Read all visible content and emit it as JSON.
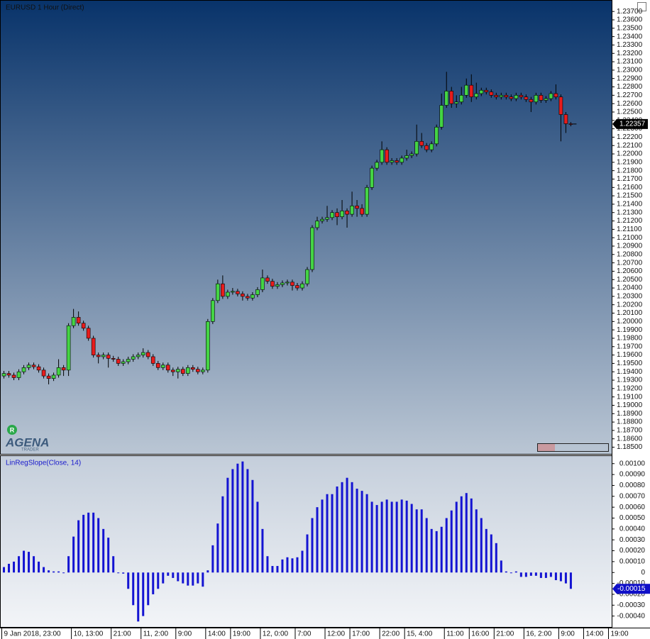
{
  "chart_data": [
    {
      "type": "candlestick",
      "title": "EURUSD 1 Hour (Direct)",
      "up_color": "#44d444",
      "down_color": "#e81c1c",
      "open": [
        1.1935,
        1.1938,
        1.1936,
        1.1933,
        1.194,
        1.1945,
        1.1948,
        1.1946,
        1.1942,
        1.1935,
        1.1932,
        1.1936,
        1.1945,
        1.1942,
        1.1995,
        1.2005,
        1.1998,
        1.1992,
        1.198,
        1.196,
        1.1958,
        1.196,
        1.1956,
        1.1955,
        1.195,
        1.1952,
        1.1955,
        1.1958,
        1.196,
        1.1963,
        1.1958,
        1.195,
        1.1945,
        1.1948,
        1.1942,
        1.194,
        1.1943,
        1.1938,
        1.1945,
        1.1943,
        1.194,
        1.1942,
        1.2,
        1.2025,
        1.2045,
        1.203,
        1.2035,
        1.2036,
        1.2033,
        1.203,
        1.2028,
        1.2032,
        1.2038,
        1.2052,
        1.2048,
        1.2042,
        1.2044,
        1.2046,
        1.2047,
        1.2043,
        1.204,
        1.2045,
        1.2062,
        1.2112,
        1.212,
        1.2122,
        1.2124,
        1.213,
        1.2125,
        1.2132,
        1.2128,
        1.2138,
        1.2135,
        1.2128,
        1.216,
        1.2183,
        1.219,
        1.2205,
        1.219,
        1.2192,
        1.219,
        1.2195,
        1.2198,
        1.22,
        1.2215,
        1.221,
        1.2205,
        1.2212,
        1.2232,
        1.2258,
        1.2275,
        1.226,
        1.2262,
        1.227,
        1.2282,
        1.2268,
        1.2272,
        1.2276,
        1.2274,
        1.227,
        1.2268,
        1.227,
        1.2268,
        1.2266,
        1.227,
        1.2268,
        1.2265,
        1.2262,
        1.227,
        1.2264,
        1.2266,
        1.2272,
        1.2268,
        1.2247,
        1.2236,
        null,
        null,
        null,
        null,
        null,
        null,
        null,
        null
      ],
      "high": [
        1.1941,
        1.1941,
        1.1939,
        1.1943,
        1.1948,
        1.1951,
        1.1951,
        1.1949,
        1.1945,
        1.1938,
        1.1939,
        1.1955,
        1.1948,
        1.1998,
        1.2015,
        1.2012,
        1.2001,
        1.1995,
        1.1983,
        1.1963,
        1.1963,
        1.1963,
        1.1959,
        1.1958,
        1.1955,
        1.1958,
        1.1961,
        1.1963,
        1.1968,
        1.1966,
        1.1961,
        1.1953,
        1.1951,
        1.1951,
        1.1945,
        1.1946,
        1.1946,
        1.1948,
        1.1948,
        1.1946,
        1.1945,
        1.2003,
        1.2028,
        1.205,
        1.2055,
        1.2038,
        1.204,
        1.2039,
        1.2036,
        1.2033,
        1.2035,
        1.2041,
        1.2062,
        1.2055,
        1.2051,
        1.2047,
        1.2049,
        1.205,
        1.205,
        1.2046,
        1.2048,
        1.2065,
        1.2115,
        1.2125,
        1.2125,
        1.2138,
        1.2133,
        1.2135,
        1.2145,
        1.2135,
        1.2155,
        1.2145,
        1.214,
        1.2163,
        1.2186,
        1.2193,
        1.2215,
        1.2208,
        1.2195,
        1.2195,
        1.2198,
        1.2205,
        1.2203,
        1.2235,
        1.2225,
        1.2213,
        1.2215,
        1.2235,
        1.2272,
        1.2298,
        1.228,
        1.227,
        1.228,
        1.229,
        1.2295,
        1.2285,
        1.2279,
        1.2279,
        1.2277,
        1.2273,
        1.2273,
        1.2273,
        1.2271,
        1.2273,
        1.2273,
        1.2271,
        1.2268,
        1.2273,
        1.2273,
        1.2269,
        1.2275,
        1.2283,
        1.2271,
        1.225,
        1.2238,
        null,
        null,
        null,
        null,
        null,
        null,
        null,
        null
      ],
      "low": [
        1.1932,
        1.1933,
        1.193,
        1.193,
        1.1937,
        1.1942,
        1.1943,
        1.1939,
        1.1932,
        1.1925,
        1.1929,
        1.1933,
        1.1935,
        1.1935,
        1.1992,
        1.1995,
        1.1989,
        1.1977,
        1.1957,
        1.195,
        1.1955,
        1.1945,
        1.1952,
        1.1947,
        1.1947,
        1.1949,
        1.1952,
        1.1955,
        1.1957,
        1.1955,
        1.1947,
        1.1942,
        1.1942,
        1.1939,
        1.1935,
        1.1932,
        1.1935,
        1.1935,
        1.194,
        1.1937,
        1.1937,
        1.1939,
        1.1997,
        1.2022,
        1.2027,
        1.2027,
        1.2032,
        1.203,
        1.2025,
        1.2025,
        1.2025,
        1.2029,
        1.2035,
        1.2045,
        1.2039,
        1.2039,
        1.2041,
        1.2043,
        1.2037,
        1.2037,
        1.2037,
        1.2042,
        1.2059,
        1.2109,
        1.2117,
        1.2119,
        1.2121,
        1.2115,
        1.2122,
        1.2112,
        1.2125,
        1.2125,
        1.2125,
        1.2125,
        1.2157,
        1.218,
        1.2187,
        1.2187,
        1.2187,
        1.2187,
        1.2187,
        1.2192,
        1.2195,
        1.2197,
        1.2207,
        1.2202,
        1.2202,
        1.2209,
        1.2229,
        1.2255,
        1.2255,
        1.2255,
        1.2259,
        1.2267,
        1.2262,
        1.2265,
        1.2269,
        1.2271,
        1.2267,
        1.2265,
        1.2265,
        1.2265,
        1.2263,
        1.2263,
        1.2265,
        1.2262,
        1.225,
        1.2259,
        1.2261,
        1.2261,
        1.2263,
        1.2265,
        1.2215,
        1.2225,
        1.2233,
        null,
        null,
        null,
        null,
        null,
        null,
        null,
        null
      ],
      "close": [
        1.1938,
        1.1936,
        1.1933,
        1.194,
        1.1945,
        1.1948,
        1.1946,
        1.1942,
        1.1935,
        1.1932,
        1.1936,
        1.1945,
        1.1942,
        1.1995,
        1.2005,
        1.1998,
        1.1992,
        1.198,
        1.196,
        1.1958,
        1.196,
        1.1956,
        1.1955,
        1.195,
        1.1952,
        1.1955,
        1.1958,
        1.196,
        1.1963,
        1.1958,
        1.195,
        1.1945,
        1.1948,
        1.1942,
        1.194,
        1.1943,
        1.1938,
        1.1945,
        1.1943,
        1.194,
        1.1942,
        1.2,
        1.2025,
        1.2045,
        1.203,
        1.2035,
        1.2036,
        1.2033,
        1.203,
        1.2028,
        1.2032,
        1.2038,
        1.2052,
        1.2048,
        1.2042,
        1.2044,
        1.2046,
        1.2047,
        1.2043,
        1.204,
        1.2045,
        1.2062,
        1.2112,
        1.212,
        1.2122,
        1.2124,
        1.213,
        1.2125,
        1.2132,
        1.2128,
        1.2138,
        1.2135,
        1.2128,
        1.216,
        1.2183,
        1.219,
        1.2205,
        1.219,
        1.2192,
        1.219,
        1.2195,
        1.2198,
        1.22,
        1.2215,
        1.221,
        1.2205,
        1.2212,
        1.2232,
        1.2258,
        1.2275,
        1.226,
        1.2262,
        1.227,
        1.2282,
        1.2268,
        1.2272,
        1.2276,
        1.2274,
        1.227,
        1.2268,
        1.227,
        1.2268,
        1.2266,
        1.227,
        1.2268,
        1.2265,
        1.2262,
        1.227,
        1.2264,
        1.2266,
        1.2272,
        1.2268,
        1.2247,
        1.2236,
        1.22357,
        null,
        null,
        null,
        null,
        null,
        null,
        null,
        null
      ],
      "ylim": [
        1.1842,
        1.2382
      ],
      "yticks": [
        {
          "value": 1.185,
          "label": "1.18500"
        },
        {
          "value": 1.186,
          "label": "1.18600"
        },
        {
          "value": 1.187,
          "label": "1.18700"
        },
        {
          "value": 1.188,
          "label": "1.18800"
        },
        {
          "value": 1.189,
          "label": "1.18900"
        },
        {
          "value": 1.19,
          "label": "1.19000"
        },
        {
          "value": 1.191,
          "label": "1.19100"
        },
        {
          "value": 1.192,
          "label": "1.19200"
        },
        {
          "value": 1.193,
          "label": "1.19300"
        },
        {
          "value": 1.194,
          "label": "1.19400"
        },
        {
          "value": 1.195,
          "label": "1.19500"
        },
        {
          "value": 1.196,
          "label": "1.19600"
        },
        {
          "value": 1.197,
          "label": "1.19700"
        },
        {
          "value": 1.198,
          "label": "1.19800"
        },
        {
          "value": 1.199,
          "label": "1.19900"
        },
        {
          "value": 1.2,
          "label": "1.20000"
        },
        {
          "value": 1.201,
          "label": "1.20100"
        },
        {
          "value": 1.202,
          "label": "1.20200"
        },
        {
          "value": 1.203,
          "label": "1.20300"
        },
        {
          "value": 1.204,
          "label": "1.20400"
        },
        {
          "value": 1.205,
          "label": "1.20500"
        },
        {
          "value": 1.206,
          "label": "1.20600"
        },
        {
          "value": 1.207,
          "label": "1.20700"
        },
        {
          "value": 1.208,
          "label": "1.20800"
        },
        {
          "value": 1.209,
          "label": "1.20900"
        },
        {
          "value": 1.21,
          "label": "1.21000"
        },
        {
          "value": 1.211,
          "label": "1.21100"
        },
        {
          "value": 1.212,
          "label": "1.21200"
        },
        {
          "value": 1.213,
          "label": "1.21300"
        },
        {
          "value": 1.214,
          "label": "1.21400"
        },
        {
          "value": 1.215,
          "label": "1.21500"
        },
        {
          "value": 1.216,
          "label": "1.21600"
        },
        {
          "value": 1.217,
          "label": "1.21700"
        },
        {
          "value": 1.218,
          "label": "1.21800"
        },
        {
          "value": 1.219,
          "label": "1.21900"
        },
        {
          "value": 1.22,
          "label": "1.22000"
        },
        {
          "value": 1.221,
          "label": "1.22100"
        },
        {
          "value": 1.222,
          "label": "1.22200"
        },
        {
          "value": 1.223,
          "label": "1.22300"
        },
        {
          "value": 1.224,
          "label": "1.22400"
        },
        {
          "value": 1.225,
          "label": "1.22500"
        },
        {
          "value": 1.226,
          "label": "1.22600"
        },
        {
          "value": 1.227,
          "label": "1.22700"
        },
        {
          "value": 1.228,
          "label": "1.22800"
        },
        {
          "value": 1.229,
          "label": "1.22900"
        },
        {
          "value": 1.23,
          "label": "1.23000"
        },
        {
          "value": 1.231,
          "label": "1.23100"
        },
        {
          "value": 1.232,
          "label": "1.23200"
        },
        {
          "value": 1.233,
          "label": "1.23300"
        },
        {
          "value": 1.234,
          "label": "1.23400"
        },
        {
          "value": 1.235,
          "label": "1.23500"
        },
        {
          "value": 1.236,
          "label": "1.23600"
        },
        {
          "value": 1.237,
          "label": "1.23700"
        }
      ]
    },
    {
      "type": "bar",
      "title": "LinRegSlope(Close, 14)",
      "color": "#1414d2",
      "categories": [
        "9 Jan 2018, 23:00",
        null,
        null,
        null,
        null,
        null,
        null,
        null,
        null,
        null,
        null,
        null,
        null,
        null,
        "10, 13:00",
        null,
        null,
        null,
        null,
        null,
        null,
        null,
        "21:00",
        null,
        null,
        null,
        null,
        null,
        "11, 2:00",
        null,
        null,
        null,
        null,
        null,
        null,
        "9:00",
        null,
        null,
        null,
        null,
        null,
        "14:00",
        null,
        null,
        null,
        null,
        "19:00",
        null,
        null,
        null,
        null,
        null,
        "12, 0:00",
        null,
        null,
        null,
        null,
        null,
        null,
        "7:00",
        null,
        null,
        null,
        null,
        null,
        "12:00",
        null,
        null,
        null,
        null,
        "17:00",
        null,
        null,
        null,
        null,
        null,
        "22:00",
        null,
        null,
        null,
        null,
        "15, 4:00",
        null,
        null,
        null,
        null,
        null,
        null,
        null,
        "11:00",
        null,
        null,
        null,
        null,
        "16:00",
        null,
        null,
        null,
        null,
        "21:00",
        null,
        null,
        null,
        null,
        null,
        "16, 2:00",
        null,
        null,
        null,
        null,
        null,
        null,
        "9:00",
        null,
        null,
        null,
        null,
        "14:00",
        null,
        null,
        null,
        null,
        "19:00"
      ],
      "values": [
        5e-05,
        8e-05,
        0.0001,
        0.00015,
        0.0002,
        0.00019,
        0.00015,
        0.0001,
        5e-05,
        2e-05,
        1e-05,
        1e-05,
        0,
        0.00015,
        0.00033,
        0.00048,
        0.00053,
        0.00055,
        0.00055,
        0.0005,
        0.0004,
        0.00032,
        0.00015,
        0,
        -1e-05,
        -0.00015,
        -0.0003,
        -0.00045,
        -0.0004,
        -0.0003,
        -0.0002,
        -0.00015,
        -0.0001,
        -3e-05,
        -5e-05,
        -8e-05,
        -0.0001,
        -0.00012,
        -0.00012,
        -0.0001,
        -0.00013,
        2e-05,
        0.00025,
        0.00045,
        0.0007,
        0.00087,
        0.00095,
        0.001,
        0.00102,
        0.00095,
        0.00085,
        0.00065,
        0.0004,
        0.00015,
        6e-05,
        6e-05,
        0.00012,
        0.00014,
        0.00013,
        0.00014,
        0.0002,
        0.00035,
        0.0005,
        0.0006,
        0.00067,
        0.00072,
        0.00072,
        0.00079,
        0.00083,
        0.00087,
        0.00083,
        0.00077,
        0.00075,
        0.00072,
        0.00065,
        0.00062,
        0.00065,
        0.00067,
        0.00065,
        0.00065,
        0.00067,
        0.00066,
        0.00063,
        0.00058,
        0.00058,
        0.0005,
        0.0004,
        0.00038,
        0.00042,
        0.0005,
        0.00057,
        0.00065,
        0.0007,
        0.00073,
        0.00068,
        0.00058,
        0.0005,
        0.0004,
        0.00035,
        0.00027,
        0.00011,
        1e-05,
        0,
        1e-05,
        -4e-05,
        -4e-05,
        -3e-05,
        -3e-05,
        -5e-05,
        -5e-05,
        -4e-05,
        -7e-05,
        -8e-05,
        -0.0001,
        -0.00015,
        null,
        null,
        null,
        null,
        null,
        null,
        null,
        null
      ],
      "ylim": [
        -0.0005,
        0.00107
      ],
      "yticks": [
        {
          "value": 0.001,
          "label": "0.00100"
        },
        {
          "value": 0.0009,
          "label": "0.00090"
        },
        {
          "value": 0.0008,
          "label": "0.00080"
        },
        {
          "value": 0.0007,
          "label": "0.00070"
        },
        {
          "value": 0.0006,
          "label": "0.00060"
        },
        {
          "value": 0.0005,
          "label": "0.00050"
        },
        {
          "value": 0.0004,
          "label": "0.00040"
        },
        {
          "value": 0.0003,
          "label": "0.00030"
        },
        {
          "value": 0.0002,
          "label": "0.00020"
        },
        {
          "value": 0.0001,
          "label": "0.00010"
        },
        0,
        {
          "value": -0.0001,
          "label": "-0.00010"
        },
        {
          "value": -0.0002,
          "label": "-0.00020"
        },
        {
          "value": -0.0003,
          "label": "-0.00030"
        },
        {
          "value": -0.0004,
          "label": "-0.00040"
        }
      ]
    }
  ],
  "logo": {
    "badge": "R",
    "name": "AGENA",
    "sub": "TRADER"
  }
}
